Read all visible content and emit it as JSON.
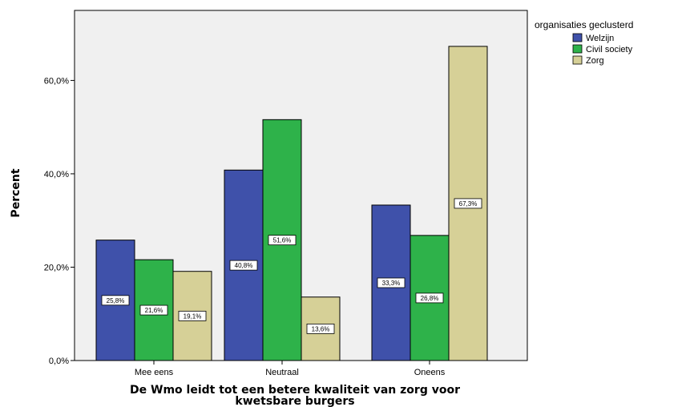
{
  "chart_data": {
    "type": "bar",
    "categories": [
      "Mee eens",
      "Neutraal",
      "Oneens"
    ],
    "series": [
      {
        "name": "Welzijn",
        "values": [
          25.8,
          40.8,
          33.3
        ],
        "color": "#3f51aa"
      },
      {
        "name": "Civil society",
        "values": [
          21.6,
          51.6,
          26.8
        ],
        "color": "#2eb24a"
      },
      {
        "name": "Zorg",
        "values": [
          19.1,
          13.6,
          67.3
        ],
        "color": "#d6d097"
      }
    ],
    "data_labels": [
      [
        "25,8%",
        "40,8%",
        "33,3%"
      ],
      [
        "21,6%",
        "51,6%",
        "26,8%"
      ],
      [
        "19,1%",
        "13,6%",
        "67,3%"
      ]
    ],
    "title": "",
    "xlabel_lines": [
      "De Wmo leidt tot een betere kwaliteit van zorg voor",
      "kwetsbare burgers"
    ],
    "ylabel": "Percent",
    "ylim": [
      0,
      75
    ],
    "yticks": [
      0,
      20,
      40,
      60
    ],
    "ytick_labels": [
      "0,0%",
      "20,0%",
      "40,0%",
      "60,0%"
    ],
    "legend_title": "organisaties geclusterd",
    "legend_position": "top-right",
    "grid": false,
    "plot_background": "#f0f0f0"
  }
}
